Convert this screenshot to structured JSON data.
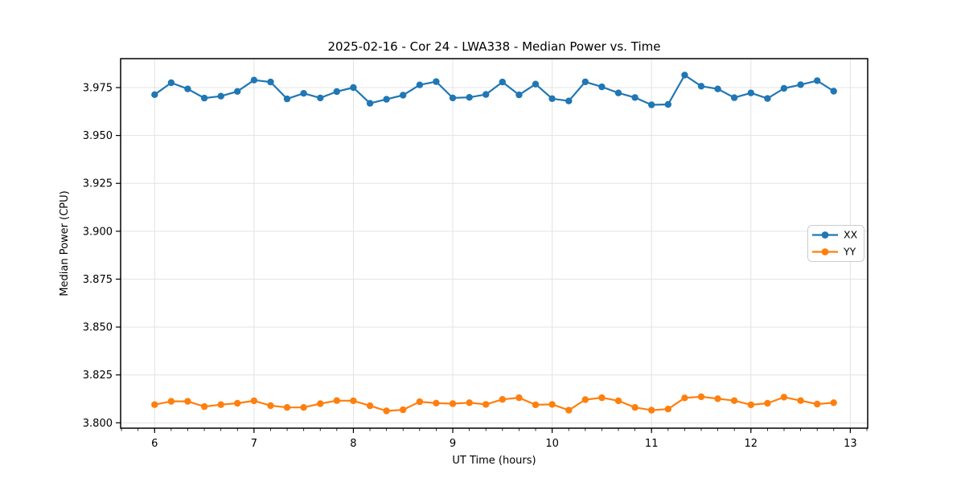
{
  "figure": {
    "title": "2025-02-16 - Cor 24 - LWA338 - Median Power vs. Time"
  },
  "chart_data": {
    "type": "line",
    "title": "2025-02-16 - Cor 24 - LWA338 - Median Power vs. Time",
    "xlabel": "UT Time (hours)",
    "ylabel": "Median Power (CPU)",
    "xlim": [
      5.658,
      13.175
    ],
    "ylim": [
      3.7972,
      3.9901
    ],
    "x_ticks": [
      6,
      7,
      8,
      9,
      10,
      11,
      12,
      13
    ],
    "x_tick_labels": [
      "6",
      "7",
      "8",
      "9",
      "10",
      "11",
      "12",
      "13"
    ],
    "x_minor_tick_step": 0.166667,
    "y_ticks": [
      3.8,
      3.825,
      3.85,
      3.875,
      3.9,
      3.925,
      3.95,
      3.975
    ],
    "y_tick_labels": [
      "3.800",
      "3.825",
      "3.850",
      "3.875",
      "3.900",
      "3.925",
      "3.950",
      "3.975"
    ],
    "grid": true,
    "legend": {
      "location": "center right",
      "entries": [
        "XX",
        "YY"
      ]
    },
    "marker": "circle",
    "x": [
      6.0,
      6.167,
      6.333,
      6.5,
      6.667,
      6.833,
      7.0,
      7.167,
      7.333,
      7.5,
      7.667,
      7.833,
      8.0,
      8.167,
      8.333,
      8.5,
      8.667,
      8.833,
      9.0,
      9.167,
      9.333,
      9.5,
      9.667,
      9.833,
      10.0,
      10.167,
      10.333,
      10.5,
      10.667,
      10.833,
      11.0,
      11.167,
      11.333,
      11.5,
      11.667,
      11.833,
      12.0,
      12.167,
      12.333,
      12.5,
      12.667,
      12.833
    ],
    "series": [
      {
        "name": "XX",
        "color": "#1f77b4",
        "values": [
          3.9713,
          3.9775,
          3.9743,
          3.9695,
          3.9705,
          3.973,
          3.9789,
          3.9779,
          3.9691,
          3.972,
          3.9696,
          3.9729,
          3.975,
          3.9668,
          3.9689,
          3.971,
          3.9764,
          3.9781,
          3.9696,
          3.9699,
          3.9714,
          3.9779,
          3.9712,
          3.9768,
          3.9692,
          3.968,
          3.978,
          3.9754,
          3.9722,
          3.9698,
          3.966,
          3.9662,
          3.9815,
          3.9757,
          3.9743,
          3.9697,
          3.9722,
          3.9693,
          3.9746,
          3.9765,
          3.9786,
          3.9731
        ]
      },
      {
        "name": "YY",
        "color": "#ff7f0e",
        "values": [
          3.8095,
          3.8112,
          3.8112,
          3.8085,
          3.8095,
          3.8102,
          3.8115,
          3.809,
          3.808,
          3.808,
          3.81,
          3.8116,
          3.8115,
          3.8089,
          3.8062,
          3.8068,
          3.811,
          3.8103,
          3.81,
          3.8105,
          3.8096,
          3.8122,
          3.8131,
          3.8094,
          3.8096,
          3.8066,
          3.8121,
          3.8131,
          3.8115,
          3.808,
          3.8066,
          3.8072,
          3.813,
          3.8136,
          3.8126,
          3.8116,
          3.8094,
          3.8102,
          3.8134,
          3.8116,
          3.8098,
          3.8105
        ]
      }
    ],
    "style": {
      "grid_color": "#e3e3e3",
      "spine_color": "#000000",
      "background": "#ffffff"
    }
  }
}
